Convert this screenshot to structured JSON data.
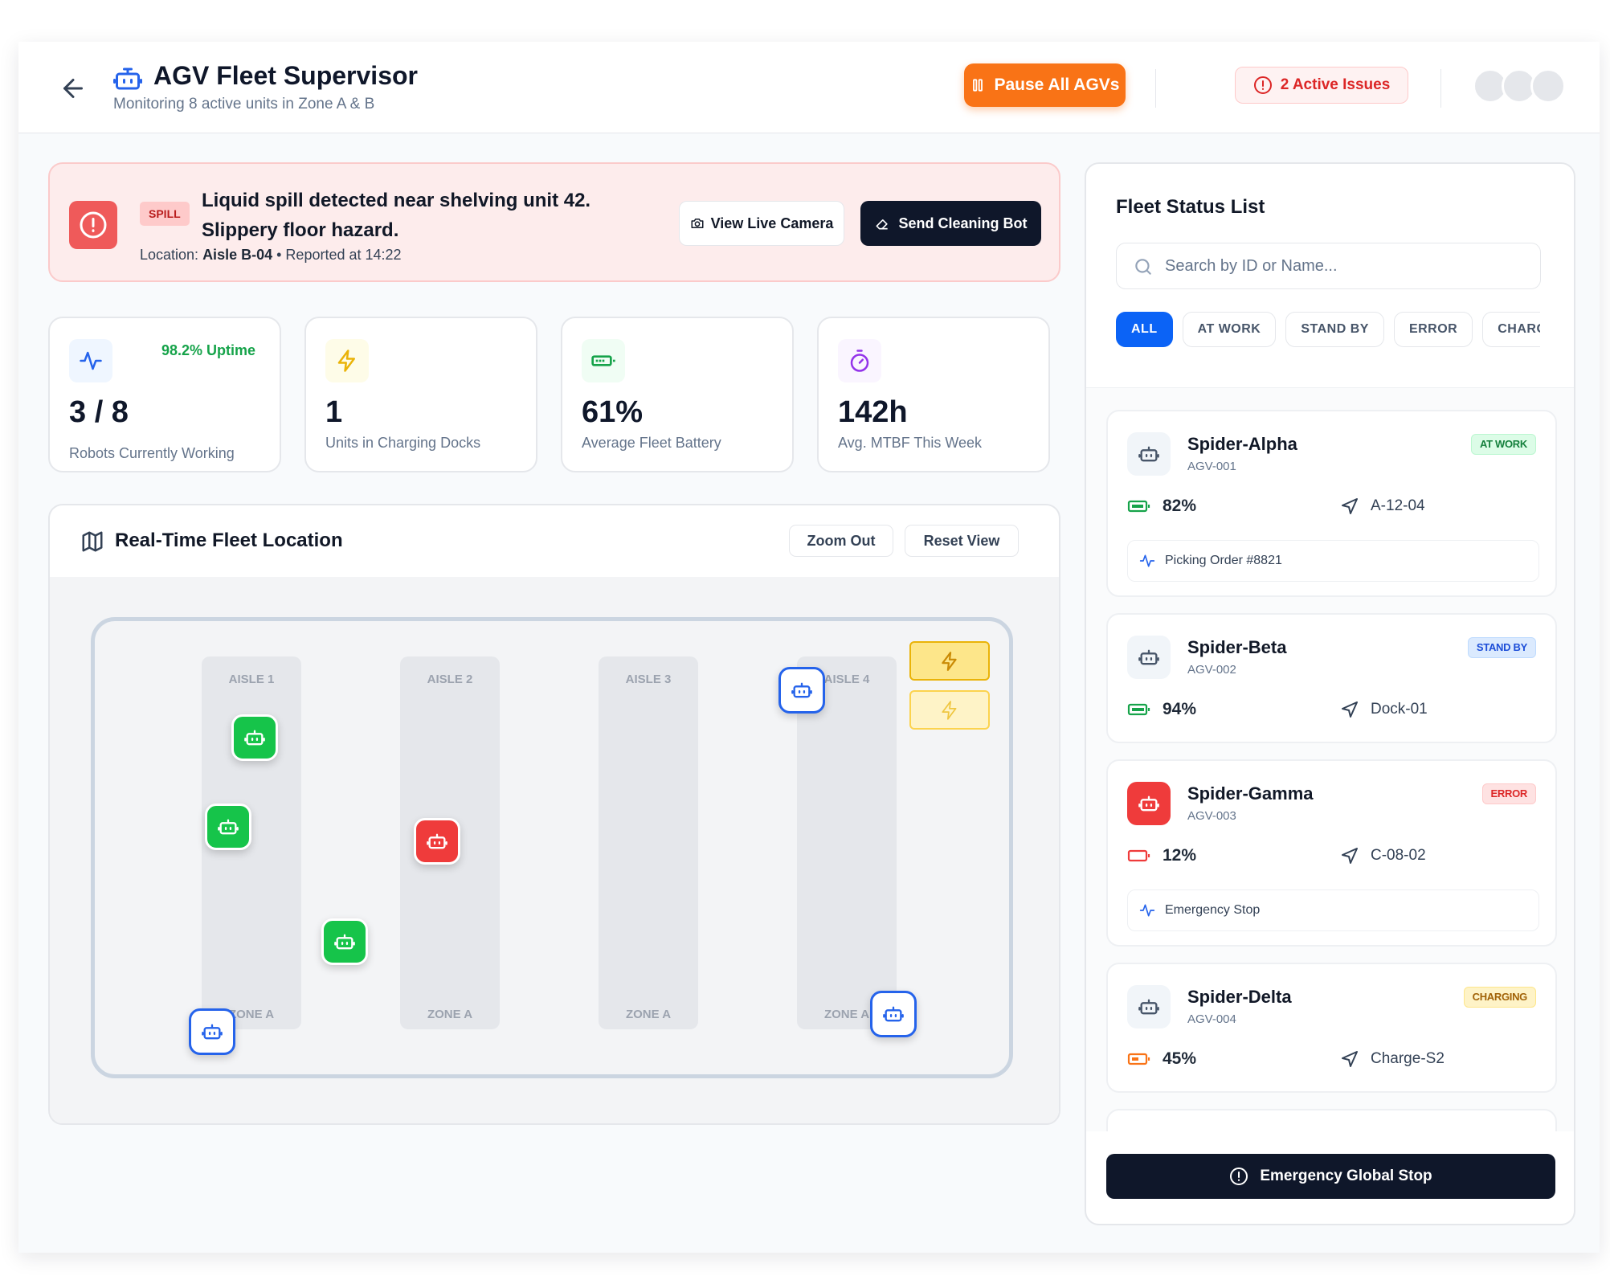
{
  "header": {
    "title": "AGV Fleet Supervisor",
    "subtitle": "Monitoring 8 active units in Zone A & B",
    "pause_label": "Pause All AGVs",
    "issues_label": "2 Active Issues"
  },
  "alert": {
    "badge": "SPILL",
    "title": "Liquid spill detected near shelving unit 42. Slippery floor hazard.",
    "location_prefix": "Location: ",
    "location": "Aisle B-04",
    "reported": "• Reported at 14:22",
    "camera_label": "View Live Camera",
    "clean_label": "Send Cleaning Bot"
  },
  "stats": [
    {
      "value": "3 / 8",
      "label": "Robots Currently Working",
      "badge": "98.2% Uptime"
    },
    {
      "value": "1",
      "label": "Units in Charging Docks"
    },
    {
      "value": "61%",
      "label": "Average Fleet Battery"
    },
    {
      "value": "142h",
      "label": "Avg. MTBF This Week"
    }
  ],
  "map": {
    "title": "Real-Time Fleet Location",
    "zoom_out_label": "Zoom Out",
    "reset_label": "Reset View",
    "aisles": [
      {
        "label": "AISLE 1",
        "zone": "ZONE A"
      },
      {
        "label": "AISLE 2",
        "zone": "ZONE A"
      },
      {
        "label": "AISLE 3",
        "zone": "ZONE A"
      },
      {
        "label": "AISLE 4",
        "zone": "ZONE A"
      }
    ]
  },
  "fleet": {
    "title": "Fleet Status List",
    "search_placeholder": "Search by ID or Name...",
    "filters": [
      "ALL",
      "AT WORK",
      "STAND BY",
      "ERROR",
      "CHARGING"
    ],
    "robots": [
      {
        "name": "Spider-Alpha",
        "id": "AGV-001",
        "status": "AT WORK",
        "battery": "82%",
        "location": "A-12-04",
        "task": "Picking Order #8821"
      },
      {
        "name": "Spider-Beta",
        "id": "AGV-002",
        "status": "STAND BY",
        "battery": "94%",
        "location": "Dock-01"
      },
      {
        "name": "Spider-Gamma",
        "id": "AGV-003",
        "status": "ERROR",
        "battery": "12%",
        "location": "C-08-02",
        "task": "Emergency Stop"
      },
      {
        "name": "Spider-Delta",
        "id": "AGV-004",
        "status": "CHARGING",
        "battery": "45%",
        "location": "Charge-S2"
      }
    ],
    "estop_label": "Emergency Global Stop"
  },
  "colors": {
    "accent": "#0b63f6",
    "warning": "#f97316",
    "danger": "#ef3b3b",
    "success": "#16c44a",
    "dark": "#0f172a"
  }
}
